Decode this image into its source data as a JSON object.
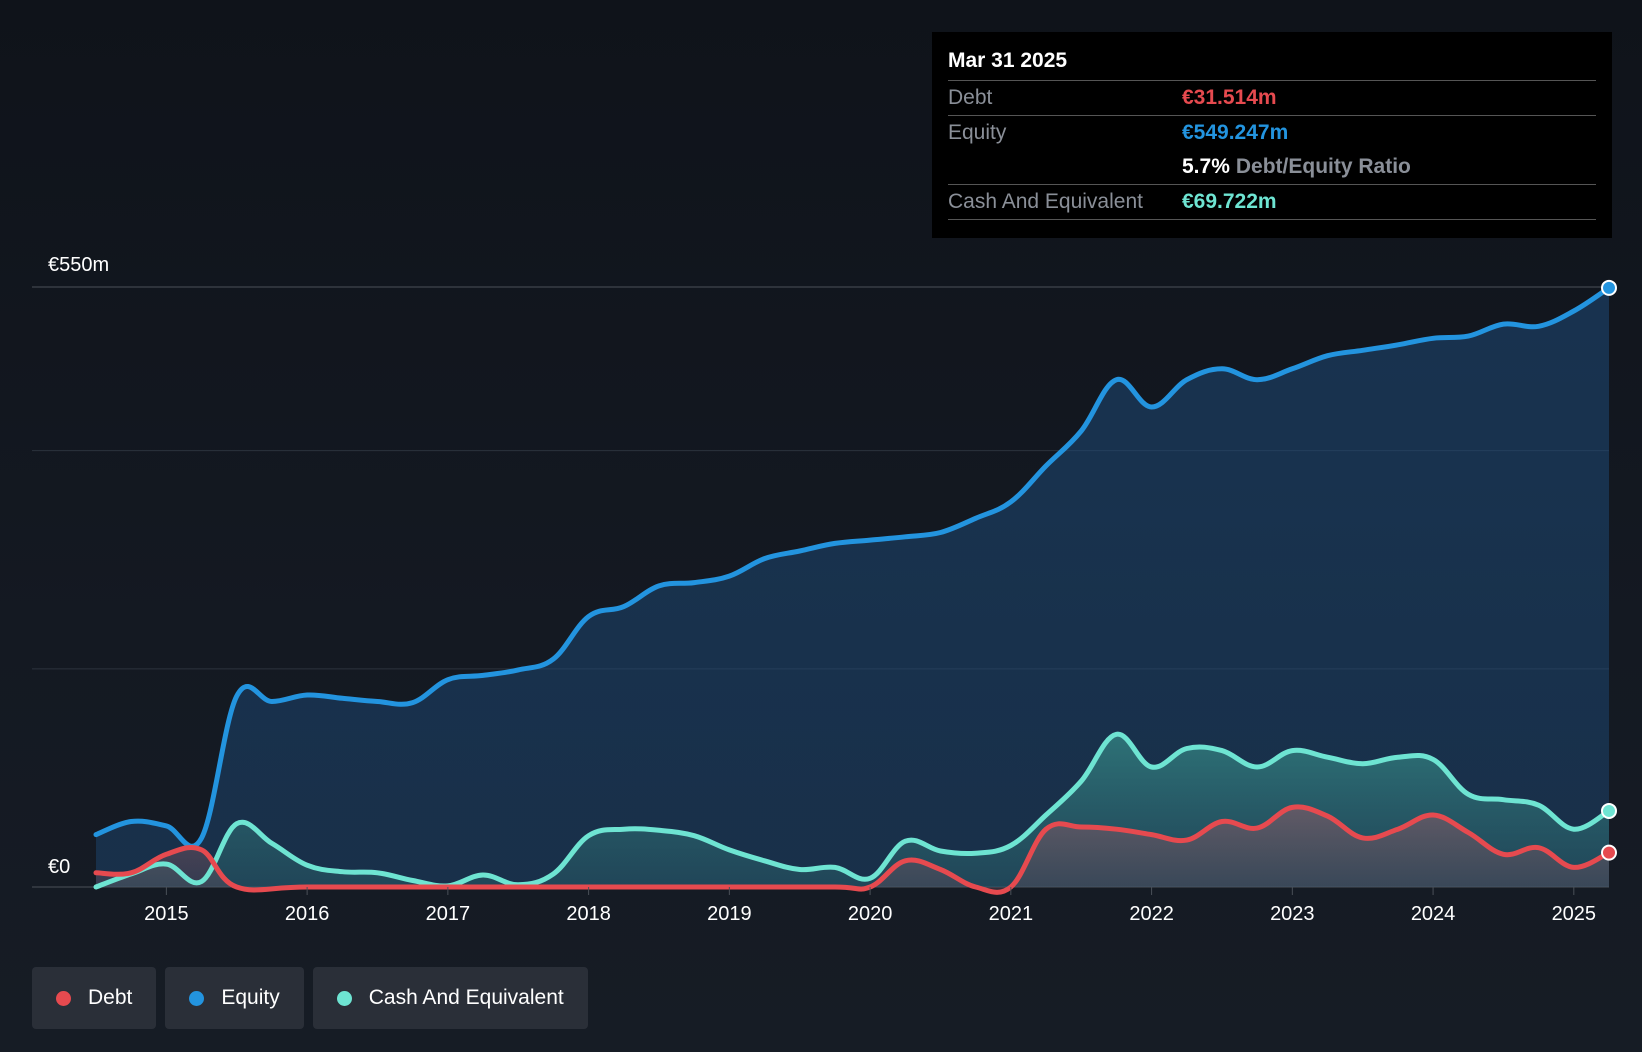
{
  "tooltip": {
    "date": "Mar 31 2025",
    "debt_label": "Debt",
    "debt_value": "€31.514m",
    "equity_label": "Equity",
    "equity_value": "€549.247m",
    "ratio_value": "5.7%",
    "ratio_label": "Debt/Equity Ratio",
    "cash_label": "Cash And Equivalent",
    "cash_value": "€69.722m"
  },
  "legend": [
    {
      "label": "Debt",
      "color": "#e64a4f"
    },
    {
      "label": "Equity",
      "color": "#2394df"
    },
    {
      "label": "Cash And Equivalent",
      "color": "#6ee4d2"
    }
  ],
  "chart_data": {
    "type": "area",
    "title": "",
    "xlabel": "",
    "ylabel": "",
    "xlim": [
      2014.5,
      2025.25
    ],
    "ylim": [
      0,
      550
    ],
    "y_tick_labels": [
      {
        "value": 550,
        "label": "€550m"
      },
      {
        "value": 0,
        "label": "€0"
      }
    ],
    "x_ticks": [
      2015,
      2016,
      2017,
      2018,
      2019,
      2020,
      2021,
      2022,
      2023,
      2024,
      2025
    ],
    "x_tick_labels": [
      "2015",
      "2016",
      "2017",
      "2018",
      "2019",
      "2020",
      "2021",
      "2022",
      "2023",
      "2024",
      "2025"
    ],
    "series": [
      {
        "name": "Equity",
        "color": "#2394df",
        "points": [
          [
            2014.5,
            48
          ],
          [
            2014.75,
            60
          ],
          [
            2015.0,
            56
          ],
          [
            2015.25,
            45
          ],
          [
            2015.5,
            175
          ],
          [
            2015.75,
            170
          ],
          [
            2016.0,
            176
          ],
          [
            2016.25,
            173
          ],
          [
            2016.5,
            170
          ],
          [
            2016.75,
            169
          ],
          [
            2017.0,
            190
          ],
          [
            2017.25,
            194
          ],
          [
            2017.5,
            199
          ],
          [
            2017.75,
            209
          ],
          [
            2018.0,
            248
          ],
          [
            2018.25,
            257
          ],
          [
            2018.5,
            276
          ],
          [
            2018.75,
            279
          ],
          [
            2019.0,
            285
          ],
          [
            2019.25,
            301
          ],
          [
            2019.5,
            308
          ],
          [
            2019.75,
            315
          ],
          [
            2020.0,
            318
          ],
          [
            2020.25,
            321
          ],
          [
            2020.5,
            325
          ],
          [
            2020.75,
            338
          ],
          [
            2021.0,
            353
          ],
          [
            2021.25,
            386
          ],
          [
            2021.5,
            418
          ],
          [
            2021.75,
            465
          ],
          [
            2022.0,
            440
          ],
          [
            2022.25,
            465
          ],
          [
            2022.5,
            475
          ],
          [
            2022.75,
            465
          ],
          [
            2023.0,
            475
          ],
          [
            2023.25,
            487
          ],
          [
            2023.5,
            492
          ],
          [
            2023.75,
            497
          ],
          [
            2024.0,
            503
          ],
          [
            2024.25,
            505
          ],
          [
            2024.5,
            516
          ],
          [
            2024.75,
            514
          ],
          [
            2025.0,
            528
          ],
          [
            2025.25,
            549.247
          ]
        ]
      },
      {
        "name": "Cash And Equivalent",
        "color": "#6ee4d2",
        "points": [
          [
            2014.5,
            0
          ],
          [
            2014.75,
            12
          ],
          [
            2015.0,
            21
          ],
          [
            2015.25,
            5
          ],
          [
            2015.5,
            58
          ],
          [
            2015.75,
            40
          ],
          [
            2016.0,
            20
          ],
          [
            2016.25,
            14
          ],
          [
            2016.5,
            13
          ],
          [
            2016.75,
            6
          ],
          [
            2017.0,
            1
          ],
          [
            2017.25,
            11
          ],
          [
            2017.5,
            2
          ],
          [
            2017.75,
            12
          ],
          [
            2018.0,
            47
          ],
          [
            2018.25,
            53
          ],
          [
            2018.5,
            52
          ],
          [
            2018.75,
            47
          ],
          [
            2019.0,
            34
          ],
          [
            2019.25,
            24
          ],
          [
            2019.5,
            16
          ],
          [
            2019.75,
            18
          ],
          [
            2020.0,
            8
          ],
          [
            2020.25,
            42
          ],
          [
            2020.5,
            33
          ],
          [
            2020.75,
            31
          ],
          [
            2021.0,
            38
          ],
          [
            2021.25,
            66
          ],
          [
            2021.5,
            97
          ],
          [
            2021.75,
            140
          ],
          [
            2022.0,
            110
          ],
          [
            2022.25,
            127
          ],
          [
            2022.5,
            125
          ],
          [
            2022.75,
            110
          ],
          [
            2023.0,
            125
          ],
          [
            2023.25,
            119
          ],
          [
            2023.5,
            113
          ],
          [
            2023.75,
            119
          ],
          [
            2024.0,
            117
          ],
          [
            2024.25,
            85
          ],
          [
            2024.5,
            80
          ],
          [
            2024.75,
            75
          ],
          [
            2025.0,
            53
          ],
          [
            2025.25,
            69.722
          ]
        ]
      },
      {
        "name": "Debt",
        "color": "#e64a4f",
        "points": [
          [
            2014.5,
            13
          ],
          [
            2014.75,
            13
          ],
          [
            2015.0,
            30
          ],
          [
            2015.25,
            34
          ],
          [
            2015.5,
            0
          ],
          [
            2016.0,
            0
          ],
          [
            2017.0,
            0
          ],
          [
            2018.0,
            0
          ],
          [
            2019.0,
            0
          ],
          [
            2019.75,
            0
          ],
          [
            2020.0,
            0
          ],
          [
            2020.25,
            24
          ],
          [
            2020.5,
            16
          ],
          [
            2020.75,
            0
          ],
          [
            2021.0,
            0
          ],
          [
            2021.25,
            53
          ],
          [
            2021.5,
            55
          ],
          [
            2021.75,
            53
          ],
          [
            2022.0,
            48
          ],
          [
            2022.25,
            43
          ],
          [
            2022.5,
            60
          ],
          [
            2022.75,
            54
          ],
          [
            2023.0,
            73
          ],
          [
            2023.25,
            65
          ],
          [
            2023.5,
            45
          ],
          [
            2023.75,
            53
          ],
          [
            2024.0,
            66
          ],
          [
            2024.25,
            50
          ],
          [
            2024.5,
            30
          ],
          [
            2024.75,
            36
          ],
          [
            2025.0,
            18
          ],
          [
            2025.25,
            31.514
          ]
        ]
      }
    ]
  }
}
